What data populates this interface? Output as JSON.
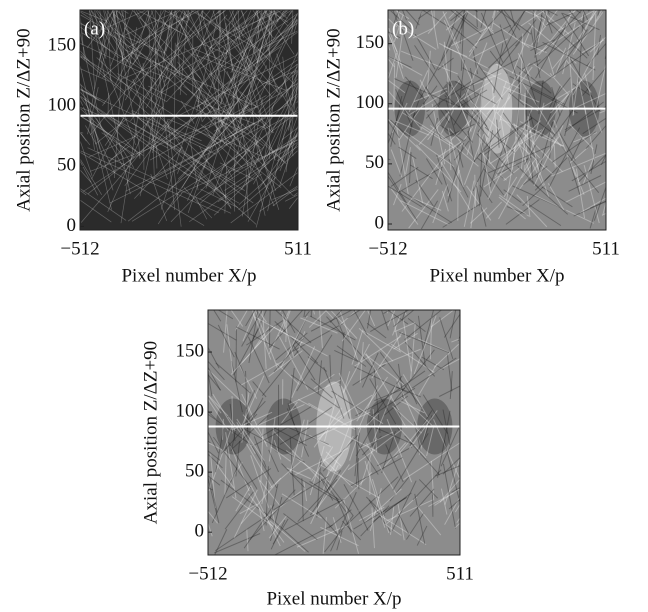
{
  "chart_data": [
    {
      "type": "image",
      "panel_label": "(a)",
      "xlabel": "Pixel number X/p",
      "ylabel": "Axial position Z/ΔZ+90",
      "xlim": [
        -512,
        511
      ],
      "ylim": [
        -3,
        180
      ],
      "xticks": [
        {
          "value": -512,
          "label": "−512"
        },
        511
      ],
      "yticks": [
        0,
        50,
        100,
        150
      ],
      "hline": 92
    },
    {
      "type": "image",
      "panel_label": "(b)",
      "xlabel": "Pixel number X/p",
      "ylabel": "Axial position Z/ΔZ+90",
      "xlim": [
        -512,
        511
      ],
      "ylim": [
        -5,
        178
      ],
      "xticks": [
        {
          "value": -512,
          "label": "−512"
        },
        511
      ],
      "yticks": [
        0,
        50,
        100,
        150
      ],
      "hline": 96
    },
    {
      "type": "image",
      "xlabel": "Pixel number X/p",
      "ylabel": "Axial position Z/ΔZ+90",
      "xlim": [
        -512,
        511
      ],
      "ylim": [
        -19,
        185
      ],
      "xticks": [
        {
          "value": -512,
          "label": "−512"
        },
        511
      ],
      "yticks": [
        0,
        50,
        100,
        150
      ],
      "hline": 88
    }
  ]
}
